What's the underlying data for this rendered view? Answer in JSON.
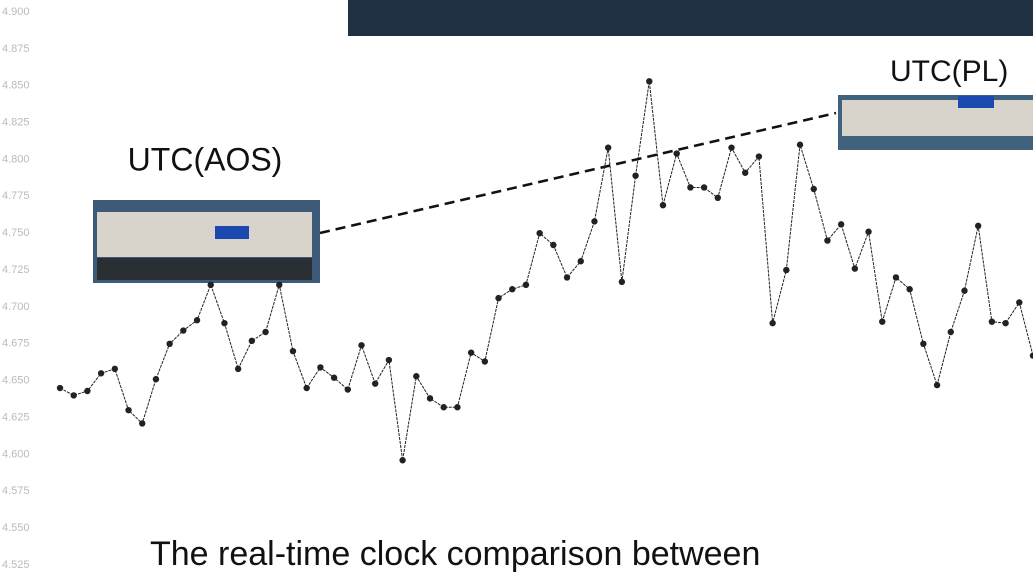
{
  "chart_data": {
    "type": "line",
    "title": "The real-time clock comparison between",
    "annotations": [
      "UTC(AOS)",
      "UTC(PL)"
    ],
    "color": "#222222",
    "values": [
      4.645,
      4.64,
      4.643,
      4.655,
      4.658,
      4.63,
      4.621,
      4.651,
      4.675,
      4.684,
      4.691,
      4.715,
      4.689,
      4.658,
      4.677,
      4.683,
      4.715,
      4.67,
      4.645,
      4.659,
      4.652,
      4.644,
      4.674,
      4.648,
      4.664,
      4.596,
      4.653,
      4.638,
      4.632,
      4.632,
      4.669,
      4.663,
      4.706,
      4.712,
      4.715,
      4.75,
      4.742,
      4.72,
      4.731,
      4.758,
      4.808,
      4.717,
      4.789,
      4.853,
      4.769,
      4.804,
      4.781,
      4.781,
      4.774,
      4.808,
      4.791,
      4.802,
      4.689,
      4.725,
      4.81,
      4.78,
      4.745,
      4.756,
      4.726,
      4.751,
      4.69,
      4.72,
      4.712,
      4.675,
      4.647,
      4.683,
      4.711,
      4.755,
      4.69,
      4.689,
      4.703,
      4.667
    ],
    "ylim": [
      4.525,
      4.9
    ],
    "yticks": [
      {
        "value": 4.9,
        "label": "4.900"
      },
      4.875,
      {
        "value": 4.85,
        "label": "4.850"
      },
      4.825,
      {
        "value": 4.8,
        "label": "4.800"
      },
      4.775,
      {
        "value": 4.75,
        "label": "4.750"
      },
      4.725,
      {
        "value": 4.7,
        "label": "4.700"
      },
      4.675,
      {
        "value": 4.65,
        "label": "4.650"
      },
      4.625,
      {
        "value": 4.6,
        "label": "4.600"
      },
      4.575,
      {
        "value": 4.55,
        "label": "4.550"
      },
      4.525
    ],
    "grid": false
  }
}
